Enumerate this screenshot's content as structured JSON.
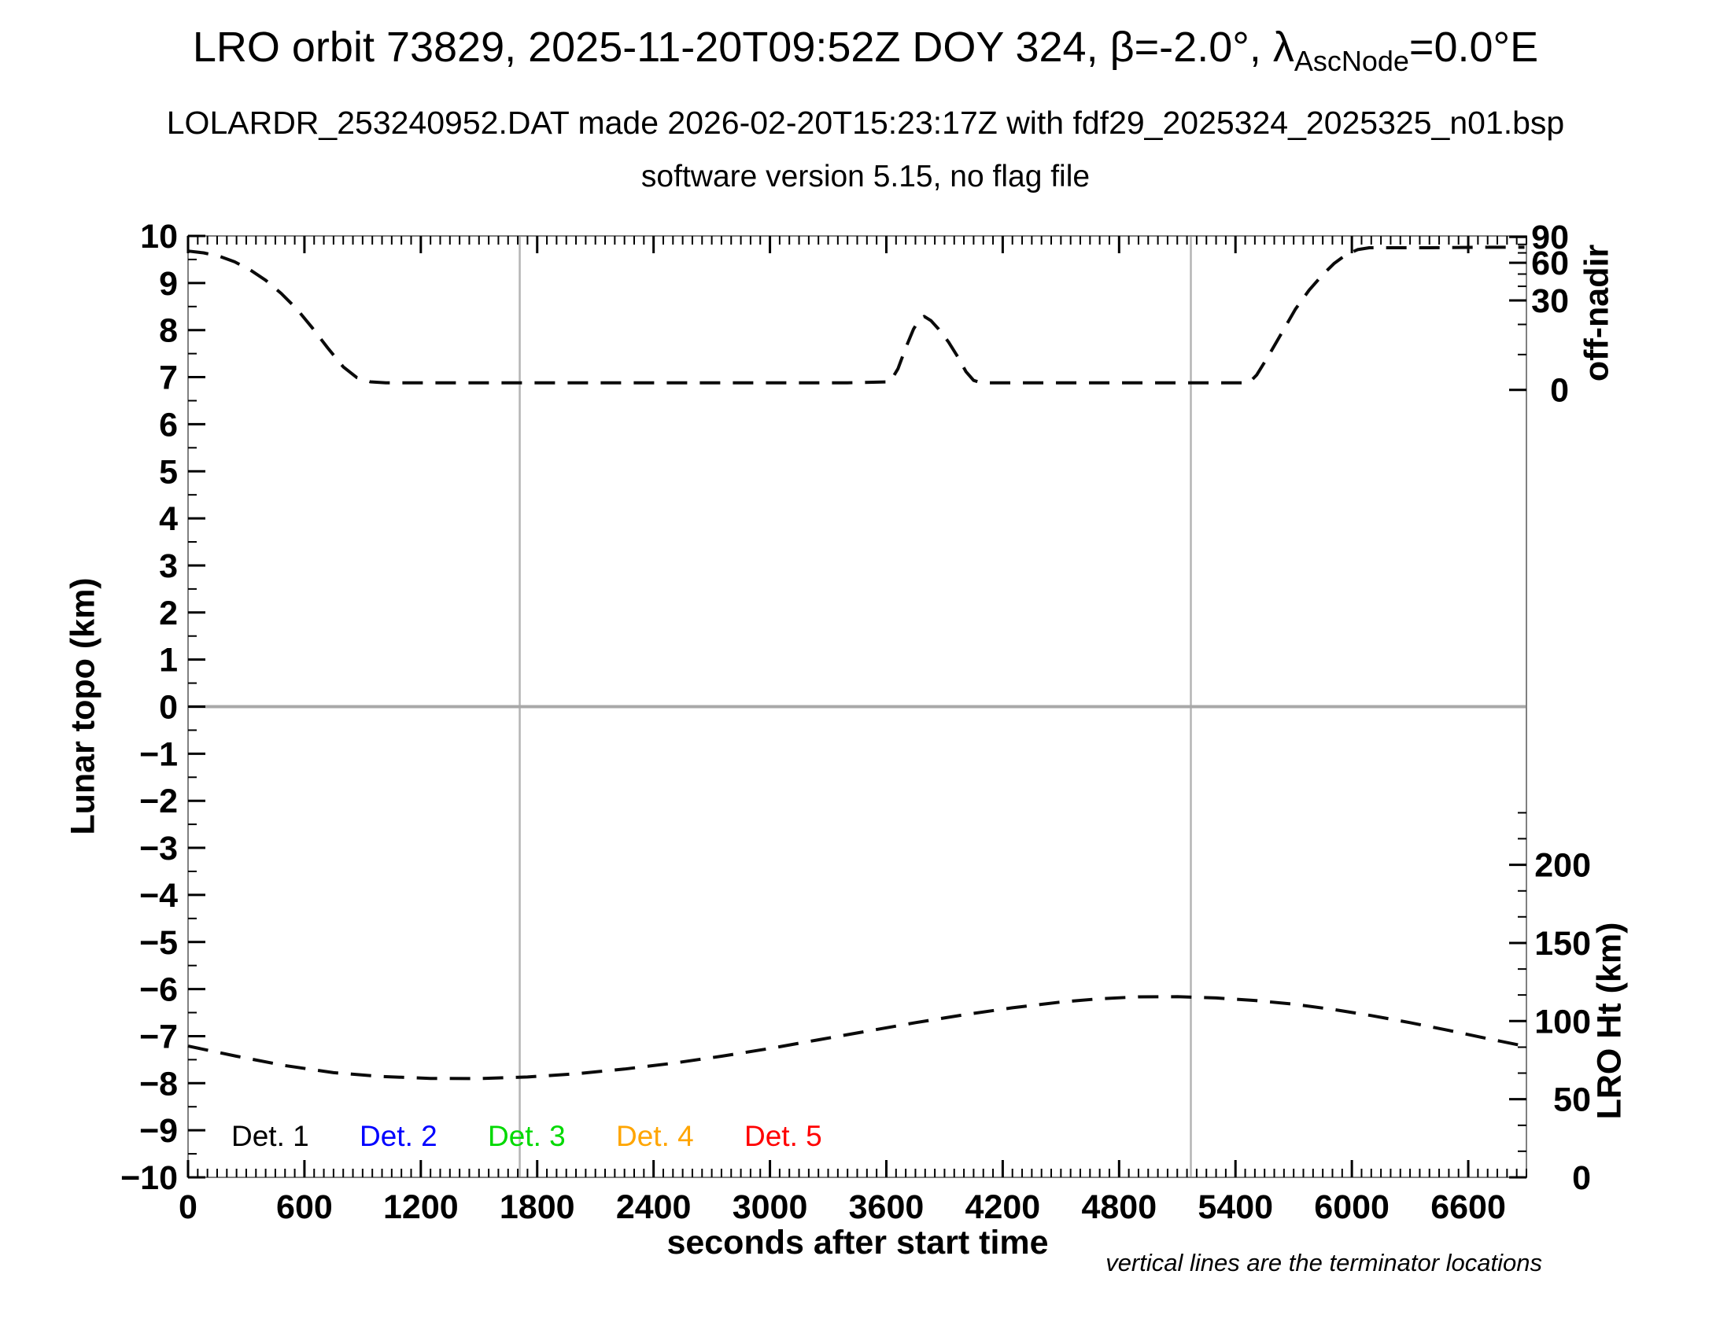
{
  "title": {
    "prefix": "LRO orbit 73829, 2025-11-20T09:52Z DOY 324, β=-2.0°, λ",
    "subscript": "AscNode",
    "suffix": "=0.0°E"
  },
  "subtitle": "LOLARDR_253240952.DAT made 2026-02-20T15:23:17Z with fdf29_2025324_2025325_n01.bsp",
  "subtitle2": "software version 5.15, no flag file",
  "footnote": "vertical lines are the terminator locations",
  "chart_data": {
    "type": "line",
    "xlabel": "seconds after start time",
    "xlim": [
      0,
      6900
    ],
    "x_major_ticks": [
      0,
      600,
      1200,
      1800,
      2400,
      3000,
      3600,
      4200,
      4800,
      5400,
      6000,
      6600
    ],
    "x_tick_labels": [
      "0",
      "600",
      "1200",
      "1800",
      "2400",
      "3000",
      "3600",
      "4200",
      "4800",
      "5400",
      "6000",
      "6600"
    ],
    "x_minor_step": 50,
    "ylabel_left": "Lunar topo (km)",
    "ylim_left": [
      -10,
      10
    ],
    "y_left_tick_values": [
      10,
      9,
      8,
      7,
      6,
      5,
      4,
      3,
      2,
      1,
      0,
      -1,
      -2,
      -3,
      -4,
      -5,
      -6,
      -7,
      -8,
      -9,
      -10
    ],
    "y_left_tick_labels": [
      "10",
      "9",
      "8",
      "7",
      "6",
      "5",
      "4",
      "3",
      "2",
      "1",
      "0",
      "−1",
      "−2",
      "−3",
      "−4",
      "−5",
      "−6",
      "−7",
      "−8",
      "−9",
      "−10"
    ],
    "y_left_minor_step": 0.5,
    "grid_y": 0,
    "terminator_times": [
      1710,
      5170
    ],
    "right_axis_offnadir": {
      "label": "off-nadir",
      "tick_values": [
        90,
        60,
        30,
        0
      ],
      "tick_labels": [
        "90",
        "60",
        "30",
        "0"
      ],
      "tick_y_leftunits": [
        9.98,
        9.43,
        8.63,
        6.73
      ],
      "minor_y_leftunits": [
        9.82,
        9.64,
        9.19,
        8.93,
        8.12,
        7.48
      ]
    },
    "right_axis_height": {
      "label": "LRO Ht (km)",
      "tick_values": [
        200,
        150,
        100,
        50,
        0
      ],
      "tick_labels": [
        "200",
        "150",
        "100",
        "50",
        "0"
      ],
      "km_to_leftunits": {
        "scale": 0.0332,
        "offset": -10
      },
      "minor_km": [
        16.7,
        33.3,
        66.7,
        83.3,
        116.7,
        133.3,
        166.7,
        183.3,
        216.7,
        233.3
      ]
    },
    "series": [
      {
        "name": "off-nadir angle profile",
        "units": "left-axis units (see off-nadir scale)",
        "linestyle": "dashed",
        "color": "#0a0a0a",
        "points": [
          [
            0,
            9.68
          ],
          [
            80,
            9.64
          ],
          [
            160,
            9.57
          ],
          [
            240,
            9.45
          ],
          [
            320,
            9.28
          ],
          [
            400,
            9.06
          ],
          [
            480,
            8.78
          ],
          [
            560,
            8.45
          ],
          [
            640,
            8.05
          ],
          [
            720,
            7.62
          ],
          [
            800,
            7.22
          ],
          [
            870,
            6.99
          ],
          [
            940,
            6.9
          ],
          [
            1020,
            6.88
          ],
          [
            1400,
            6.88
          ],
          [
            1800,
            6.88
          ],
          [
            2200,
            6.88
          ],
          [
            2600,
            6.88
          ],
          [
            3000,
            6.88
          ],
          [
            3400,
            6.88
          ],
          [
            3620,
            6.9
          ],
          [
            3660,
            7.18
          ],
          [
            3700,
            7.62
          ],
          [
            3740,
            8.02
          ],
          [
            3770,
            8.22
          ],
          [
            3795,
            8.29
          ],
          [
            3830,
            8.2
          ],
          [
            3870,
            8.02
          ],
          [
            3920,
            7.75
          ],
          [
            3970,
            7.42
          ],
          [
            4010,
            7.12
          ],
          [
            4050,
            6.93
          ],
          [
            4090,
            6.88
          ],
          [
            4450,
            6.88
          ],
          [
            4800,
            6.88
          ],
          [
            5150,
            6.88
          ],
          [
            5470,
            6.88
          ],
          [
            5510,
            7.05
          ],
          [
            5570,
            7.45
          ],
          [
            5640,
            7.95
          ],
          [
            5710,
            8.45
          ],
          [
            5780,
            8.85
          ],
          [
            5850,
            9.18
          ],
          [
            5910,
            9.42
          ],
          [
            5970,
            9.6
          ],
          [
            6030,
            9.71
          ],
          [
            6090,
            9.75
          ],
          [
            6400,
            9.75
          ],
          [
            6700,
            9.76
          ],
          [
            6890,
            9.76
          ]
        ]
      },
      {
        "name": "LRO height",
        "units": "km (see LRO Ht scale)",
        "linestyle": "dashed",
        "color": "#0a0a0a",
        "points_km": [
          [
            0,
            84
          ],
          [
            250,
            77.5
          ],
          [
            500,
            71.5
          ],
          [
            750,
            67
          ],
          [
            1000,
            64.5
          ],
          [
            1250,
            63.3
          ],
          [
            1500,
            63.2
          ],
          [
            1750,
            64.2
          ],
          [
            2000,
            66.3
          ],
          [
            2250,
            69.3
          ],
          [
            2500,
            73
          ],
          [
            2750,
            77.5
          ],
          [
            3000,
            82.5
          ],
          [
            3250,
            88
          ],
          [
            3500,
            93.5
          ],
          [
            3750,
            99
          ],
          [
            4000,
            104
          ],
          [
            4250,
            108.5
          ],
          [
            4500,
            112.2
          ],
          [
            4700,
            114.3
          ],
          [
            4900,
            115.5
          ],
          [
            5100,
            115.6
          ],
          [
            5300,
            114.8
          ],
          [
            5500,
            113.2
          ],
          [
            5700,
            110.8
          ],
          [
            5900,
            107.5
          ],
          [
            6100,
            103.5
          ],
          [
            6300,
            99
          ],
          [
            6500,
            94
          ],
          [
            6700,
            88.8
          ],
          [
            6890,
            84
          ]
        ]
      }
    ],
    "legend": [
      {
        "label": "Det. 1",
        "color": "#000000"
      },
      {
        "label": "Det. 2",
        "color": "#0000ff"
      },
      {
        "label": "Det. 3",
        "color": "#00d900"
      },
      {
        "label": "Det. 4",
        "color": "#ffa500"
      },
      {
        "label": "Det. 5",
        "color": "#ff0000"
      }
    ],
    "colors": {
      "curve": "#0a0a0a",
      "frame": "#808080",
      "gridline": "#a8a8a8",
      "terminator_line": "#b4b4b4",
      "tick": "#000000"
    }
  }
}
